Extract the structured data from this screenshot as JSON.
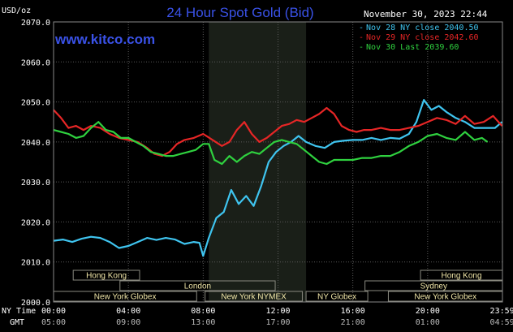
{
  "chart_data": {
    "type": "line",
    "title": "24 Hour Spot Gold (Bid)",
    "source": "www.kitco.com",
    "timestamp": "November 30, 2023 22:44",
    "ylabel": "USD/oz",
    "ylim": [
      2000,
      2070
    ],
    "yticks": [
      "2000.0",
      "2010.0",
      "2020.0",
      "2030.0",
      "2040.0",
      "2050.0",
      "2060.0",
      "2070.0"
    ],
    "xlim": [
      0,
      24
    ],
    "x_label_ny": "NY Time",
    "x_label_gmt": "GMT",
    "xticks_ny": [
      {
        "h": 0,
        "label": "00:00"
      },
      {
        "h": 4,
        "label": "04:00"
      },
      {
        "h": 8,
        "label": "08:00"
      },
      {
        "h": 12,
        "label": "12:00"
      },
      {
        "h": 16,
        "label": "16:00"
      },
      {
        "h": 20,
        "label": "20:00"
      },
      {
        "h": 23.983,
        "label": "23:59"
      }
    ],
    "xticks_gmt": [
      {
        "h": 0,
        "label": "05:00"
      },
      {
        "h": 4,
        "label": "09:00"
      },
      {
        "h": 8,
        "label": "13:00"
      },
      {
        "h": 12,
        "label": "17:00"
      },
      {
        "h": 16,
        "label": "21:00"
      },
      {
        "h": 20,
        "label": "01:00"
      },
      {
        "h": 23.983,
        "label": "04:59"
      }
    ],
    "highlight_range": [
      8.3,
      13.5
    ],
    "legend_position": "top-right",
    "colors": {
      "background": "#000000",
      "plot_bg": "#000000",
      "highlight": "#1a1f18",
      "grid": "#5a5a5a",
      "text": "#ffffff",
      "title": "#3a52e8",
      "session": "#f0e6a8",
      "session_border": "#8a8a80"
    },
    "series": [
      {
        "name": "Nov 28 NY close 2040.50",
        "color": "#3fc4ef",
        "points": [
          [
            0,
            2015.3
          ],
          [
            0.5,
            2015.6
          ],
          [
            1,
            2015.0
          ],
          [
            1.5,
            2015.8
          ],
          [
            2,
            2016.3
          ],
          [
            2.5,
            2016.0
          ],
          [
            3,
            2015.0
          ],
          [
            3.5,
            2013.5
          ],
          [
            4,
            2014.0
          ],
          [
            4.5,
            2015.0
          ],
          [
            5,
            2016.0
          ],
          [
            5.5,
            2015.5
          ],
          [
            6,
            2016.0
          ],
          [
            6.5,
            2015.6
          ],
          [
            7,
            2014.5
          ],
          [
            7.5,
            2015.0
          ],
          [
            7.8,
            2014.8
          ],
          [
            8,
            2011.5
          ],
          [
            8.3,
            2016.0
          ],
          [
            8.7,
            2021.0
          ],
          [
            9.1,
            2022.5
          ],
          [
            9.5,
            2028.0
          ],
          [
            9.9,
            2024.5
          ],
          [
            10.3,
            2026.5
          ],
          [
            10.7,
            2024.0
          ],
          [
            11.1,
            2029.0
          ],
          [
            11.5,
            2035.0
          ],
          [
            11.9,
            2037.5
          ],
          [
            12.3,
            2039.0
          ],
          [
            12.7,
            2040.0
          ],
          [
            13.1,
            2041.5
          ],
          [
            13.5,
            2040.0
          ],
          [
            14,
            2039.0
          ],
          [
            14.5,
            2038.5
          ],
          [
            15,
            2040.0
          ],
          [
            15.5,
            2040.3
          ],
          [
            16,
            2040.5
          ],
          [
            16.5,
            2040.5
          ],
          [
            17,
            2041.0
          ],
          [
            17.5,
            2040.5
          ],
          [
            18,
            2041.0
          ],
          [
            18.5,
            2040.8
          ],
          [
            19,
            2042.0
          ],
          [
            19.4,
            2045.0
          ],
          [
            19.8,
            2050.5
          ],
          [
            20.2,
            2048.0
          ],
          [
            20.6,
            2049.0
          ],
          [
            21,
            2047.5
          ],
          [
            21.5,
            2046.0
          ],
          [
            22,
            2045.0
          ],
          [
            22.5,
            2043.5
          ],
          [
            23,
            2043.5
          ],
          [
            23.6,
            2043.5
          ],
          [
            23.98,
            2045.0
          ]
        ]
      },
      {
        "name": "Nov 29 NY close 2042.60",
        "color": "#e62626",
        "points": [
          [
            0,
            2048.0
          ],
          [
            0.4,
            2046.0
          ],
          [
            0.8,
            2043.5
          ],
          [
            1.2,
            2044.0
          ],
          [
            1.6,
            2043.0
          ],
          [
            2,
            2044.0
          ],
          [
            2.5,
            2043.5
          ],
          [
            3,
            2042.0
          ],
          [
            3.5,
            2041.0
          ],
          [
            4,
            2040.5
          ],
          [
            4.5,
            2040.0
          ],
          [
            5,
            2038.5
          ],
          [
            5.4,
            2037.0
          ],
          [
            5.8,
            2036.5
          ],
          [
            6.2,
            2037.5
          ],
          [
            6.6,
            2039.5
          ],
          [
            7,
            2040.5
          ],
          [
            7.5,
            2041.0
          ],
          [
            8,
            2042.0
          ],
          [
            8.5,
            2040.5
          ],
          [
            9,
            2039.0
          ],
          [
            9.4,
            2040.0
          ],
          [
            9.8,
            2043.0
          ],
          [
            10.2,
            2045.0
          ],
          [
            10.6,
            2042.0
          ],
          [
            11,
            2040.0
          ],
          [
            11.4,
            2041.0
          ],
          [
            11.8,
            2042.5
          ],
          [
            12.2,
            2044.0
          ],
          [
            12.6,
            2044.5
          ],
          [
            13,
            2045.5
          ],
          [
            13.4,
            2045.0
          ],
          [
            13.8,
            2046.0
          ],
          [
            14.2,
            2047.0
          ],
          [
            14.6,
            2048.5
          ],
          [
            15,
            2047.0
          ],
          [
            15.4,
            2044.0
          ],
          [
            15.8,
            2043.0
          ],
          [
            16.2,
            2042.5
          ],
          [
            16.6,
            2043.0
          ],
          [
            17,
            2043.0
          ],
          [
            17.5,
            2043.5
          ],
          [
            18,
            2043.0
          ],
          [
            18.5,
            2043.0
          ],
          [
            19,
            2043.5
          ],
          [
            19.5,
            2044.0
          ],
          [
            20,
            2045.0
          ],
          [
            20.5,
            2046.0
          ],
          [
            21,
            2045.5
          ],
          [
            21.5,
            2044.5
          ],
          [
            22,
            2046.5
          ],
          [
            22.5,
            2044.5
          ],
          [
            23,
            2045.0
          ],
          [
            23.5,
            2046.5
          ],
          [
            23.98,
            2044.0
          ]
        ]
      },
      {
        "name": "Nov 30 Last 2039.60",
        "color": "#2fd13f",
        "points": [
          [
            0,
            2043.0
          ],
          [
            0.4,
            2042.5
          ],
          [
            0.8,
            2042.0
          ],
          [
            1.2,
            2041.0
          ],
          [
            1.6,
            2041.5
          ],
          [
            2,
            2043.5
          ],
          [
            2.4,
            2045.0
          ],
          [
            2.8,
            2043.0
          ],
          [
            3.2,
            2042.5
          ],
          [
            3.6,
            2041.0
          ],
          [
            4,
            2041.0
          ],
          [
            4.4,
            2040.0
          ],
          [
            4.8,
            2039.0
          ],
          [
            5.2,
            2037.5
          ],
          [
            5.6,
            2037.0
          ],
          [
            6,
            2036.5
          ],
          [
            6.4,
            2036.5
          ],
          [
            6.8,
            2037.0
          ],
          [
            7.2,
            2037.5
          ],
          [
            7.6,
            2038.0
          ],
          [
            8,
            2039.5
          ],
          [
            8.3,
            2039.5
          ],
          [
            8.6,
            2035.5
          ],
          [
            9,
            2034.5
          ],
          [
            9.4,
            2036.5
          ],
          [
            9.8,
            2035.0
          ],
          [
            10.2,
            2036.5
          ],
          [
            10.6,
            2037.5
          ],
          [
            11,
            2037.0
          ],
          [
            11.4,
            2038.5
          ],
          [
            11.8,
            2040.0
          ],
          [
            12.2,
            2040.5
          ],
          [
            12.6,
            2040.0
          ],
          [
            13,
            2039.5
          ],
          [
            13.4,
            2038.0
          ],
          [
            13.8,
            2036.5
          ],
          [
            14.2,
            2035.0
          ],
          [
            14.6,
            2034.5
          ],
          [
            15,
            2035.5
          ],
          [
            15.5,
            2035.5
          ],
          [
            16,
            2035.5
          ],
          [
            16.5,
            2036.0
          ],
          [
            17,
            2036.0
          ],
          [
            17.5,
            2036.5
          ],
          [
            18,
            2036.5
          ],
          [
            18.5,
            2037.5
          ],
          [
            19,
            2039.0
          ],
          [
            19.5,
            2040.0
          ],
          [
            20,
            2041.5
          ],
          [
            20.5,
            2042.0
          ],
          [
            21,
            2041.0
          ],
          [
            21.5,
            2040.5
          ],
          [
            22,
            2042.5
          ],
          [
            22.5,
            2040.5
          ],
          [
            22.9,
            2041.0
          ],
          [
            23.2,
            2040.0
          ]
        ]
      }
    ],
    "sessions": [
      {
        "label": "Hong Kong",
        "start": 1.05,
        "end": 4.6,
        "row": 0
      },
      {
        "label": "Hong Kong",
        "start": 19.62,
        "end": 24,
        "row": 0
      },
      {
        "label": "London",
        "start": 3.55,
        "end": 11.85,
        "row": 1
      },
      {
        "label": "Sydney",
        "start": 16.65,
        "end": 24,
        "row": 1
      },
      {
        "label": "New York Globex",
        "start": 0,
        "end": 7.65,
        "row": 2
      },
      {
        "label": "New York NYMEX",
        "start": 8.1,
        "end": 13.3,
        "row": 2
      },
      {
        "label": "NY Globex",
        "start": 13.5,
        "end": 16.8,
        "row": 2
      },
      {
        "label": "New York Globex",
        "start": 17.9,
        "end": 24,
        "row": 2
      }
    ]
  }
}
